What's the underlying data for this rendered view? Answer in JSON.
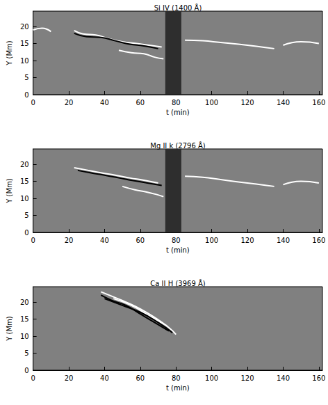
{
  "chart_data": [
    {
      "type": "line",
      "title": "Si IV (1400 Å)",
      "x_label": "t (min)",
      "y_label": "Y (Mm)",
      "xlim": [
        0,
        162
      ],
      "ylim": [
        0,
        24.5
      ],
      "xticks": [
        0,
        20,
        40,
        60,
        80,
        100,
        120,
        140,
        160
      ],
      "yticks": [
        0,
        5,
        10,
        15,
        20
      ],
      "noise_band": [
        74,
        83
      ],
      "series": [
        {
          "color": "#ffffff",
          "x": [
            23,
            28,
            35,
            42,
            50,
            58,
            65,
            72
          ],
          "values": [
            18.8,
            17.8,
            17.5,
            16.5,
            15.5,
            15,
            14.5,
            14
          ]
        },
        {
          "color": "#000000",
          "x": [
            23,
            30,
            38,
            46,
            54,
            62,
            70
          ],
          "values": [
            18,
            17,
            16.8,
            15.8,
            14.8,
            14.3,
            13.5
          ]
        },
        {
          "color": "#ffffff",
          "x": [
            48,
            55,
            62,
            68,
            73
          ],
          "values": [
            13,
            12.3,
            12,
            11,
            10.5
          ]
        },
        {
          "color": "#ffffff",
          "x": [
            85,
            95,
            105,
            115,
            125,
            135
          ],
          "values": [
            16,
            15.8,
            15.3,
            14.8,
            14.2,
            13.5
          ]
        },
        {
          "color": "#ffffff",
          "x": [
            0,
            5,
            10
          ],
          "values": [
            19,
            19.5,
            18.5
          ]
        },
        {
          "color": "#ffffff",
          "x": [
            140,
            150,
            160
          ],
          "values": [
            14.5,
            15.5,
            15
          ]
        }
      ]
    },
    {
      "type": "line",
      "title": "Mg II k (2796 Å)",
      "x_label": "t (min)",
      "y_label": "Y (Mm)",
      "xlim": [
        0,
        162
      ],
      "ylim": [
        0,
        24.5
      ],
      "xticks": [
        0,
        20,
        40,
        60,
        80,
        100,
        120,
        140,
        160
      ],
      "yticks": [
        0,
        5,
        10,
        15,
        20
      ],
      "noise_band": [
        74,
        83
      ],
      "series": [
        {
          "color": "#ffffff",
          "x": [
            23,
            30,
            38,
            46,
            54,
            62,
            70
          ],
          "values": [
            19,
            18.3,
            17.5,
            16.8,
            16,
            15.3,
            14.5
          ]
        },
        {
          "color": "#000000",
          "x": [
            25,
            32,
            40,
            48,
            56,
            64,
            72
          ],
          "values": [
            18.2,
            17.5,
            16.8,
            16,
            15.2,
            14.5,
            13.8
          ]
        },
        {
          "color": "#ffffff",
          "x": [
            50,
            57,
            64,
            70,
            73
          ],
          "values": [
            13.5,
            12.5,
            11.8,
            11,
            10.5
          ]
        },
        {
          "color": "#ffffff",
          "x": [
            85,
            95,
            105,
            115,
            125,
            135
          ],
          "values": [
            16.5,
            16.2,
            15.5,
            14.8,
            14.2,
            13.5
          ]
        },
        {
          "color": "#ffffff",
          "x": [
            140,
            150,
            160
          ],
          "values": [
            14,
            15,
            14.5
          ]
        }
      ]
    },
    {
      "type": "line",
      "title": "Ca II H (3969 Å)",
      "x_label": "t (min)",
      "y_label": "Y (Mm)",
      "xlim": [
        0,
        162
      ],
      "ylim": [
        0,
        24.5
      ],
      "xticks": [
        0,
        20,
        40,
        60,
        80,
        100,
        120,
        140,
        160
      ],
      "yticks": [
        0,
        5,
        10,
        15,
        20
      ],
      "series": [
        {
          "color": "#ffffff",
          "x": [
            38,
            45,
            52,
            60,
            68,
            76,
            80
          ],
          "values": [
            23,
            21.5,
            20,
            18,
            15.5,
            12.5,
            10.5
          ]
        },
        {
          "color": "#000000",
          "x": [
            38,
            44,
            52,
            60,
            68,
            76
          ],
          "values": [
            22,
            20.5,
            19,
            16.5,
            14,
            11.5
          ]
        },
        {
          "color": "#ffffff",
          "x": [
            45,
            55,
            65,
            75
          ],
          "values": [
            21,
            19,
            16,
            13
          ]
        },
        {
          "color": "#000000",
          "x": [
            40,
            50,
            60,
            70,
            78
          ],
          "values": [
            21,
            19,
            17,
            14,
            11
          ]
        }
      ]
    }
  ]
}
